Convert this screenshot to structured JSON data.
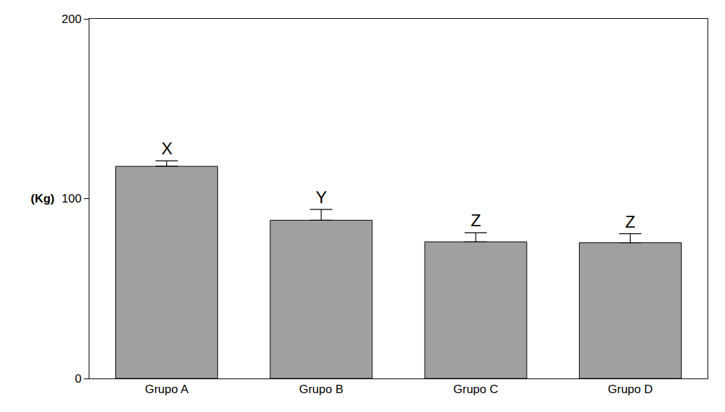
{
  "chart_data": {
    "type": "bar",
    "y_label": "(Kg)",
    "categories": [
      "Grupo A",
      "Grupo B",
      "Grupo C",
      "Grupo D"
    ],
    "values": [
      118,
      88,
      76,
      75.5
    ],
    "errors": [
      3,
      6,
      5,
      5
    ],
    "annotations": [
      "X",
      "Y",
      "Z",
      "Z"
    ],
    "color": "#a0a0a0",
    "ylim": [
      0,
      200
    ],
    "yticks": [
      0,
      100,
      200
    ],
    "grid": false
  }
}
